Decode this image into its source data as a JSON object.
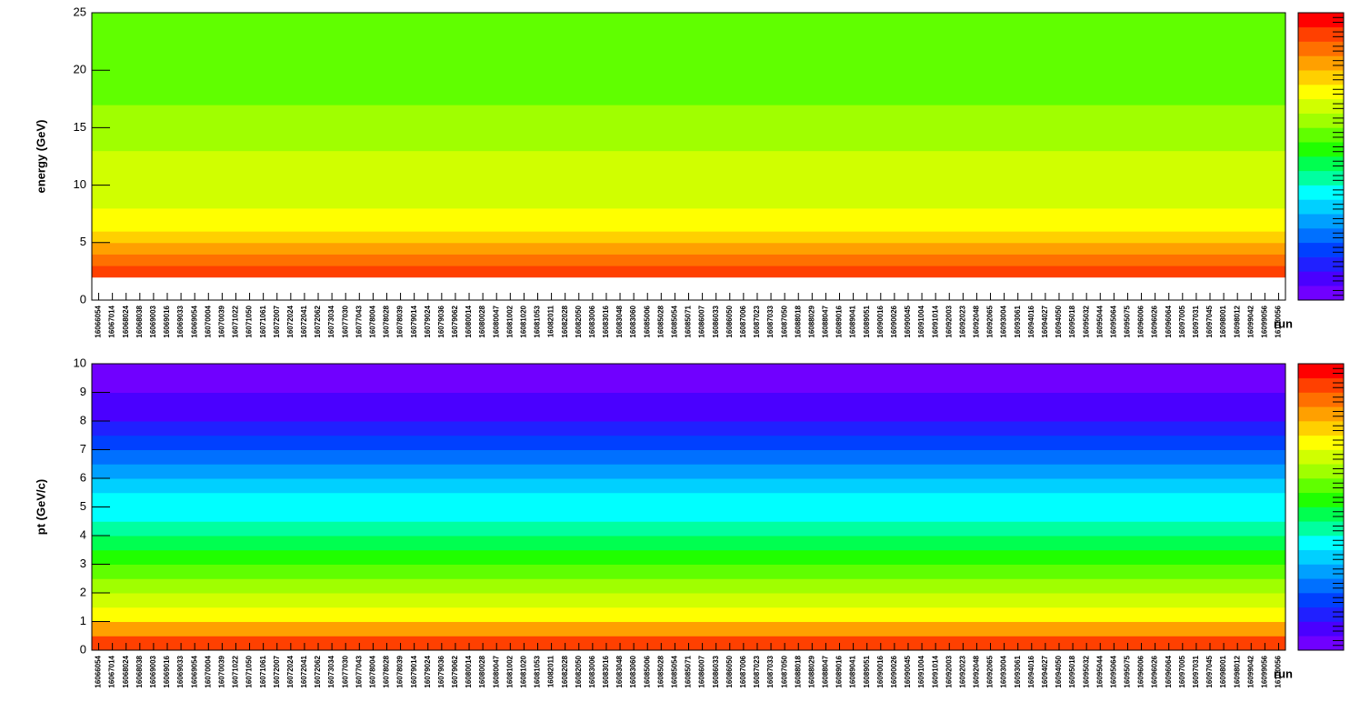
{
  "chart_data": [
    {
      "type": "heatmap",
      "ylabel": "energy (GeV)",
      "xlabel": "run",
      "categories": [
        "16066054",
        "16067014",
        "16068024",
        "16068038",
        "16069003",
        "16069016",
        "16069033",
        "16069054",
        "16070004",
        "16070039",
        "16071022",
        "16071050",
        "16071061",
        "16072007",
        "16072024",
        "16072041",
        "16072062",
        "16073034",
        "16077030",
        "16077043",
        "16078004",
        "16078028",
        "16078039",
        "16079014",
        "16079024",
        "16079036",
        "16079062",
        "16080014",
        "16080028",
        "16080047",
        "16081002",
        "16081020",
        "16081053",
        "16082011",
        "16082028",
        "16082050",
        "16083006",
        "16083016",
        "16083048",
        "16083060",
        "16085006",
        "16085028",
        "16085054",
        "16085071",
        "16086007",
        "16086033",
        "16086050",
        "16087006",
        "16087023",
        "16087033",
        "16087050",
        "16088018",
        "16088029",
        "16088047",
        "16089016",
        "16089041",
        "16089051",
        "16090016",
        "16090026",
        "16090045",
        "16091004",
        "16091014",
        "16092003",
        "16092023",
        "16092048",
        "16092065",
        "16093004",
        "16093061",
        "16094016",
        "16094027",
        "16094050",
        "16095018",
        "16095032",
        "16095044",
        "16095064",
        "16095075",
        "16096006",
        "16096026",
        "16096064",
        "16097005",
        "16097031",
        "16097045",
        "16098001",
        "16098012",
        "16099042",
        "16099056",
        "16100056"
      ],
      "ylim": [
        0,
        25
      ],
      "yticks": [
        0,
        5,
        10,
        15,
        20,
        25
      ],
      "ybins": [
        0,
        1,
        2,
        3,
        4,
        5,
        6,
        7,
        8,
        9,
        10,
        11,
        12,
        13,
        14,
        15,
        16,
        17,
        18,
        19,
        20,
        21,
        22,
        23,
        24,
        25
      ],
      "z": [
        null,
        null,
        18,
        17,
        16,
        15,
        14,
        14,
        13,
        13,
        13,
        13,
        13,
        12,
        12,
        12,
        12,
        11,
        11,
        11,
        11,
        11,
        11,
        11,
        11
      ],
      "palette": [
        "#7000ff",
        "#4a00ff",
        "#2020ff",
        "#0040ff",
        "#0070ff",
        "#00a0ff",
        "#00d0ff",
        "#00ffff",
        "#00ffa0",
        "#00ff50",
        "#20ff00",
        "#60ff00",
        "#a0ff00",
        "#d0ff00",
        "#ffff00",
        "#ffd000",
        "#ffa000",
        "#ff7000",
        "#ff4000",
        "#ff0000"
      ]
    },
    {
      "type": "heatmap",
      "ylabel": "pt (GeV/c)",
      "xlabel": "run",
      "categories": [
        "16066054",
        "16067014",
        "16068024",
        "16068038",
        "16069003",
        "16069016",
        "16069033",
        "16069054",
        "16070004",
        "16070039",
        "16071022",
        "16071050",
        "16071061",
        "16072007",
        "16072024",
        "16072041",
        "16072062",
        "16073034",
        "16077030",
        "16077043",
        "16078004",
        "16078028",
        "16078039",
        "16079014",
        "16079024",
        "16079036",
        "16079062",
        "16080014",
        "16080028",
        "16080047",
        "16081002",
        "16081020",
        "16081053",
        "16082011",
        "16082028",
        "16082050",
        "16083006",
        "16083016",
        "16083048",
        "16083060",
        "16085006",
        "16085028",
        "16085054",
        "16085071",
        "16086007",
        "16086033",
        "16086050",
        "16087006",
        "16087023",
        "16087033",
        "16087050",
        "16088018",
        "16088029",
        "16088047",
        "16089016",
        "16089041",
        "16089051",
        "16090016",
        "16090026",
        "16090045",
        "16091004",
        "16091014",
        "16092003",
        "16092023",
        "16092048",
        "16092065",
        "16093004",
        "16093061",
        "16094016",
        "16094027",
        "16094050",
        "16095018",
        "16095032",
        "16095044",
        "16095064",
        "16095075",
        "16096006",
        "16096026",
        "16096064",
        "16097005",
        "16097031",
        "16097045",
        "16098001",
        "16098012",
        "16099042",
        "16099056",
        "16100056"
      ],
      "ylim": [
        0,
        10
      ],
      "yticks": [
        0,
        1,
        2,
        3,
        4,
        5,
        6,
        7,
        8,
        9,
        10
      ],
      "ybins": [
        0,
        0.5,
        1,
        1.5,
        2,
        2.5,
        3,
        3.5,
        4,
        4.5,
        5,
        5.5,
        6,
        6.5,
        7,
        7.5,
        8,
        8.5,
        9,
        9.5,
        10
      ],
      "z": [
        18,
        16,
        14,
        13,
        12,
        11,
        10,
        9,
        8,
        7,
        7,
        6,
        5,
        4,
        3,
        2,
        1,
        1,
        0,
        0
      ],
      "palette": [
        "#7000ff",
        "#4a00ff",
        "#2020ff",
        "#0040ff",
        "#0070ff",
        "#00a0ff",
        "#00d0ff",
        "#00ffff",
        "#00ffa0",
        "#00ff50",
        "#20ff00",
        "#60ff00",
        "#a0ff00",
        "#d0ff00",
        "#ffff00",
        "#ffd000",
        "#ffa000",
        "#ff7000",
        "#ff4000",
        "#ff0000"
      ]
    }
  ]
}
